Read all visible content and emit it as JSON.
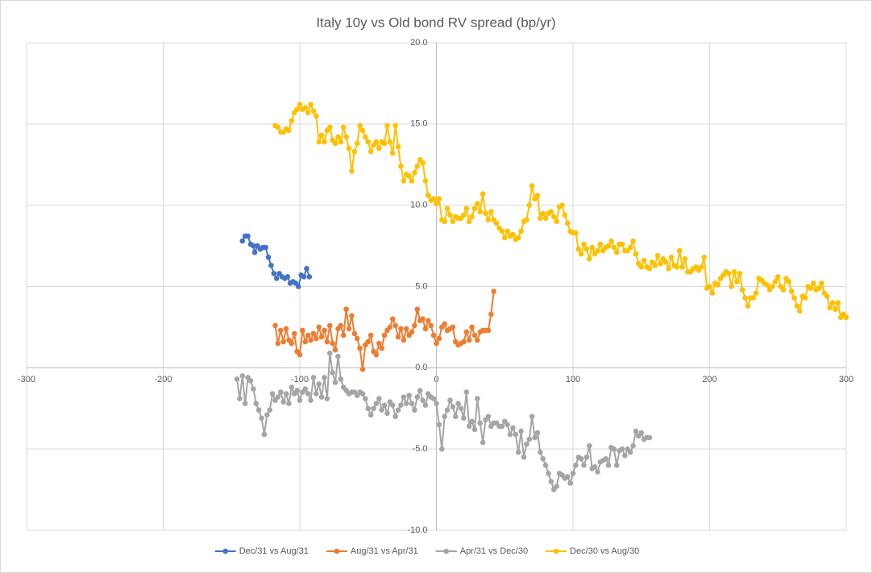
{
  "chart_data": {
    "type": "scatter",
    "title": "Italy 10y vs Old bond RV spread (bp/yr)",
    "xlim": [
      -300,
      300
    ],
    "xticks": [
      -300,
      -200,
      -100,
      0,
      100,
      200,
      300
    ],
    "ylim": [
      -10,
      20
    ],
    "yticks": [
      {
        "value": -10,
        "label": "-10.0"
      },
      {
        "value": -5,
        "label": "-5.0"
      },
      {
        "value": 0,
        "label": "0.0"
      },
      {
        "value": 5,
        "label": "5.0"
      },
      {
        "value": 10,
        "label": "10.0"
      },
      {
        "value": 15,
        "label": "15.0"
      },
      {
        "value": 20,
        "label": "20.0"
      }
    ],
    "grid": true,
    "legend": "bottom",
    "series": [
      {
        "name": "Dec/31 vs Aug/31",
        "color": "#4472c4",
        "x": [
          -142,
          -140,
          -138,
          -136,
          -134,
          -133,
          -131,
          -129,
          -127,
          -125,
          -123,
          -121,
          -119,
          -117,
          -115,
          -113,
          -111,
          -109,
          -107,
          -105,
          -103,
          -101,
          -99,
          -97,
          -95,
          -93
        ],
        "values": [
          7.8,
          8.1,
          8.1,
          7.6,
          7.5,
          7.1,
          7.5,
          7.3,
          7.4,
          7.4,
          6.8,
          6.3,
          5.8,
          5.5,
          5.8,
          5.6,
          5.5,
          5.6,
          5.2,
          5.3,
          5.2,
          5.0,
          5.7,
          5.6,
          6.1,
          5.6
        ]
      },
      {
        "name": "Aug/31 vs Apr/31",
        "color": "#ed7d31",
        "x": [
          -118,
          -116,
          -114,
          -112,
          -110,
          -108,
          -106,
          -104,
          -102,
          -100,
          -98,
          -96,
          -94,
          -92,
          -90,
          -88,
          -86,
          -84,
          -82,
          -80,
          -78,
          -76,
          -74,
          -72,
          -70,
          -68,
          -66,
          -64,
          -62,
          -60,
          -58,
          -56,
          -54,
          -52,
          -50,
          -48,
          -46,
          -44,
          -42,
          -40,
          -38,
          -36,
          -34,
          -32,
          -30,
          -28,
          -26,
          -24,
          -22,
          -20,
          -18,
          -16,
          -14,
          -12,
          -10,
          -8,
          -6,
          -4,
          -2,
          0,
          2,
          4,
          6,
          8,
          10,
          12,
          14,
          16,
          18,
          20,
          22,
          24,
          26,
          28,
          30,
          32,
          34,
          36,
          38,
          40,
          42
        ],
        "values": [
          2.6,
          1.5,
          2.3,
          1.6,
          2.4,
          1.7,
          1.5,
          2.1,
          1.0,
          0.8,
          2.3,
          1.6,
          2.0,
          1.7,
          2.1,
          1.8,
          2.5,
          1.9,
          2.3,
          1.6,
          2.6,
          1.5,
          1.1,
          2.4,
          2.6,
          2.0,
          3.6,
          2.4,
          3.2,
          2.1,
          1.8,
          1.2,
          -0.1,
          1.4,
          1.6,
          2.0,
          1.0,
          0.8,
          1.5,
          1.2,
          2.0,
          2.3,
          2.5,
          3.0,
          2.6,
          1.9,
          2.4,
          1.7,
          2.4,
          2.0,
          2.2,
          2.6,
          3.6,
          2.9,
          3.0,
          2.4,
          2.9,
          2.6,
          2.0,
          1.5,
          1.8,
          2.5,
          2.7,
          2.3,
          2.4,
          2.5,
          1.6,
          1.4,
          1.5,
          1.6,
          2.2,
          1.7,
          2.5,
          2.0,
          1.7,
          2.2,
          2.3,
          2.3,
          2.3,
          3.3,
          4.7
        ]
      },
      {
        "name": "Apr/31 vs Dec/30",
        "color": "#a5a5a5",
        "x": [
          -146,
          -144,
          -142,
          -140,
          -138,
          -136,
          -134,
          -132,
          -130,
          -128,
          -126,
          -124,
          -122,
          -120,
          -118,
          -116,
          -114,
          -112,
          -110,
          -108,
          -106,
          -104,
          -102,
          -100,
          -98,
          -96,
          -94,
          -92,
          -90,
          -88,
          -86,
          -84,
          -82,
          -80,
          -78,
          -76,
          -74,
          -72,
          -70,
          -68,
          -66,
          -64,
          -62,
          -60,
          -58,
          -56,
          -54,
          -52,
          -50,
          -48,
          -46,
          -44,
          -42,
          -40,
          -38,
          -36,
          -34,
          -32,
          -30,
          -28,
          -26,
          -24,
          -22,
          -20,
          -18,
          -16,
          -14,
          -12,
          -10,
          -8,
          -6,
          -4,
          -2,
          0,
          2,
          4,
          6,
          8,
          10,
          12,
          14,
          16,
          18,
          20,
          22,
          24,
          26,
          28,
          30,
          32,
          34,
          36,
          38,
          40,
          42,
          44,
          46,
          48,
          50,
          52,
          54,
          56,
          58,
          60,
          62,
          64,
          66,
          68,
          70,
          72,
          74,
          76,
          78,
          80,
          82,
          84,
          86,
          88,
          90,
          92,
          94,
          96,
          98,
          100,
          102,
          104,
          106,
          108,
          110,
          112,
          114,
          116,
          118,
          120,
          122,
          124,
          126,
          128,
          130,
          132,
          134,
          136,
          138,
          140,
          142,
          144,
          146,
          148,
          150,
          152,
          154,
          156
        ],
        "values": [
          -0.7,
          -1.9,
          -0.5,
          -2.2,
          -0.6,
          -0.8,
          -1.3,
          -2.2,
          -2.6,
          -3.1,
          -4.1,
          -2.9,
          -2.6,
          -1.6,
          -2.0,
          -1.8,
          -1.5,
          -2.1,
          -1.6,
          -2.2,
          -1.2,
          -1.6,
          -1.4,
          -2.0,
          -1.5,
          -1.3,
          -1.6,
          -2.0,
          -0.6,
          -1.6,
          -1.0,
          -1.8,
          -0.6,
          -1.9,
          0.9,
          -0.3,
          -0.9,
          0.7,
          -0.7,
          -1.2,
          -1.4,
          -1.6,
          -1.5,
          -1.5,
          -1.7,
          -1.5,
          -1.6,
          -1.9,
          -2.5,
          -2.9,
          -2.5,
          -2.2,
          -1.9,
          -2.6,
          -2.3,
          -2.8,
          -2.1,
          -2.3,
          -3.0,
          -2.6,
          -2.3,
          -1.8,
          -2.2,
          -1.7,
          -2.2,
          -2.6,
          -1.8,
          -1.4,
          -2.0,
          -2.3,
          -1.6,
          -1.8,
          -1.9,
          -2.2,
          -3.5,
          -5.0,
          -3.0,
          -2.6,
          -2.0,
          -2.4,
          -3.0,
          -2.2,
          -2.5,
          -3.1,
          -1.5,
          -3.6,
          -3.3,
          -3.8,
          -1.9,
          -3.4,
          -4.6,
          -3.2,
          -3.0,
          -3.6,
          -3.4,
          -3.4,
          -3.6,
          -3.6,
          -3.3,
          -3.5,
          -4.1,
          -3.7,
          -4.1,
          -5.2,
          -3.9,
          -5.5,
          -4.7,
          -4.4,
          -3.0,
          -4.3,
          -4.0,
          -5.2,
          -5.6,
          -6.0,
          -6.5,
          -7.0,
          -7.5,
          -7.3,
          -6.5,
          -6.6,
          -6.8,
          -6.7,
          -7.1,
          -6.5,
          -6.0,
          -5.5,
          -5.6,
          -6.0,
          -5.5,
          -4.8,
          -6.2,
          -6.1,
          -6.4,
          -5.8,
          -5.7,
          -5.6,
          -6.0,
          -4.9,
          -5.0,
          -6.0,
          -5.1,
          -5.0,
          -5.4,
          -5.0,
          -5.2,
          -4.8,
          -3.9,
          -4.2,
          -4.0,
          -4.4,
          -4.3,
          -4.3
        ]
      },
      {
        "name": "Dec/30 vs Aug/30",
        "color": "#ffc000",
        "x": [
          -118,
          -116,
          -114,
          -112,
          -110,
          -108,
          -106,
          -104,
          -102,
          -100,
          -98,
          -96,
          -94,
          -92,
          -90,
          -88,
          -86,
          -84,
          -82,
          -80,
          -78,
          -76,
          -74,
          -72,
          -70,
          -68,
          -66,
          -64,
          -62,
          -60,
          -58,
          -56,
          -54,
          -52,
          -50,
          -48,
          -46,
          -44,
          -42,
          -40,
          -38,
          -36,
          -34,
          -32,
          -30,
          -28,
          -26,
          -24,
          -22,
          -20,
          -18,
          -16,
          -14,
          -12,
          -10,
          -8,
          -6,
          -4,
          -2,
          0,
          2,
          4,
          6,
          8,
          10,
          12,
          14,
          16,
          18,
          20,
          22,
          24,
          26,
          28,
          30,
          32,
          34,
          36,
          38,
          40,
          42,
          44,
          46,
          48,
          50,
          52,
          54,
          56,
          58,
          60,
          62,
          64,
          66,
          68,
          70,
          72,
          74,
          76,
          78,
          80,
          82,
          84,
          86,
          88,
          90,
          92,
          94,
          96,
          98,
          100,
          102,
          104,
          106,
          108,
          110,
          112,
          114,
          116,
          118,
          120,
          122,
          124,
          126,
          128,
          130,
          132,
          134,
          136,
          138,
          140,
          142,
          144,
          146,
          148,
          150,
          152,
          154,
          156,
          158,
          160,
          162,
          164,
          166,
          168,
          170,
          172,
          174,
          176,
          178,
          180,
          182,
          184,
          186,
          188,
          190,
          192,
          194,
          196,
          198,
          200,
          202,
          204,
          206,
          208,
          210,
          212,
          214,
          216,
          218,
          220,
          222,
          224,
          226,
          228,
          230,
          232,
          234,
          236,
          238,
          240,
          242,
          244,
          246,
          248,
          250,
          252,
          254,
          256,
          258,
          260,
          262,
          264,
          266,
          268,
          270,
          272,
          274,
          276,
          278,
          280,
          282,
          284,
          286,
          288,
          290,
          292,
          294,
          296,
          298,
          300
        ],
        "values": [
          14.9,
          14.8,
          14.5,
          14.5,
          14.7,
          14.6,
          15.2,
          15.7,
          15.9,
          16.2,
          15.9,
          16.0,
          15.7,
          16.2,
          15.8,
          15.5,
          13.9,
          14.3,
          13.9,
          14.6,
          14.8,
          14.0,
          13.8,
          14.2,
          13.9,
          14.8,
          14.2,
          13.5,
          12.1,
          13.3,
          13.8,
          14.9,
          14.6,
          14.2,
          13.9,
          13.3,
          13.7,
          13.9,
          13.5,
          13.9,
          13.8,
          14.9,
          13.9,
          13.2,
          14.9,
          13.6,
          12.4,
          11.5,
          11.9,
          11.8,
          11.5,
          12.0,
          12.4,
          12.8,
          12.6,
          11.5,
          10.6,
          10.3,
          10.4,
          10.1,
          10.4,
          9.1,
          9.0,
          9.8,
          9.4,
          9.0,
          9.3,
          9.2,
          9.2,
          9.4,
          9.8,
          9.0,
          9.3,
          9.8,
          10.1,
          9.6,
          10.7,
          9.5,
          9.1,
          9.6,
          9.1,
          8.9,
          8.6,
          8.4,
          8.0,
          8.4,
          8.1,
          8.2,
          7.9,
          8.0,
          8.4,
          9.0,
          9.1,
          10.0,
          11.2,
          10.4,
          10.6,
          9.2,
          9.5,
          9.2,
          9.5,
          9.6,
          9.3,
          9.0,
          9.9,
          10.0,
          9.4,
          8.9,
          8.4,
          8.3,
          8.3,
          7.3,
          7.0,
          7.6,
          7.3,
          6.7,
          7.4,
          7.0,
          7.2,
          7.6,
          7.2,
          7.4,
          7.5,
          7.8,
          7.4,
          7.1,
          7.6,
          7.6,
          7.2,
          7.2,
          7.4,
          7.8,
          7.0,
          6.4,
          6.2,
          6.6,
          6.2,
          6.1,
          6.5,
          6.3,
          6.9,
          6.4,
          6.7,
          6.5,
          6.1,
          6.8,
          6.3,
          6.2,
          7.2,
          6.2,
          6.7,
          5.9,
          5.9,
          6.1,
          6.2,
          6.0,
          6.2,
          6.8,
          4.9,
          5.0,
          4.6,
          5.2,
          5.1,
          5.5,
          5.7,
          5.9,
          5.8,
          5.0,
          5.9,
          5.3,
          5.8,
          4.8,
          4.3,
          3.8,
          4.3,
          4.3,
          4.6,
          5.5,
          5.4,
          5.2,
          5.1,
          4.8,
          5.0,
          5.3,
          5.6,
          5.0,
          4.8,
          5.5,
          5.3,
          4.7,
          4.3,
          3.8,
          3.5,
          4.4,
          4.3,
          5.0,
          4.9,
          5.2,
          4.8,
          4.9,
          5.2,
          4.6,
          4.4,
          3.7,
          4.0,
          3.6,
          4.0,
          3.1,
          3.3,
          3.1
        ]
      }
    ]
  }
}
